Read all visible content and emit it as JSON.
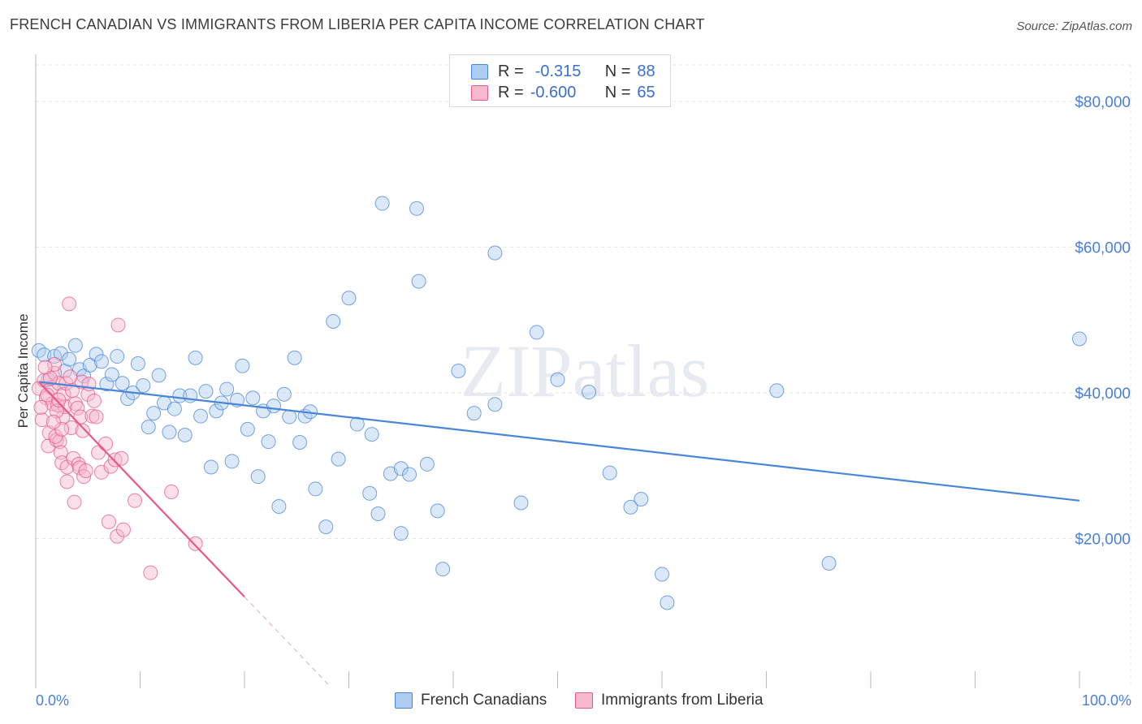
{
  "title": "FRENCH CANADIAN VS IMMIGRANTS FROM LIBERIA PER CAPITA INCOME CORRELATION CHART",
  "source": "Source: ZipAtlas.com",
  "watermark": "ZIPatlas",
  "colors": {
    "blue": "#4a86d8",
    "blue_fill": "#aecbf0",
    "pink": "#e8588a",
    "pink_fill": "#f7b9cd",
    "grid": "#e6e6e6",
    "axis_text": "#4a7fd6"
  },
  "legend": {
    "rows": [
      {
        "r_label": "R =",
        "r_value": "-0.315",
        "n_label": "N =",
        "n_value": "88"
      },
      {
        "r_label": "R =",
        "r_value": "-0.600",
        "n_label": "N =",
        "n_value": "65"
      }
    ]
  },
  "bottom_legend": [
    "French Canadians",
    "Immigrants from Liberia"
  ],
  "chart_data": {
    "type": "scatter",
    "title": "FRENCH CANADIAN VS IMMIGRANTS FROM LIBERIA PER CAPITA INCOME CORRELATION CHART",
    "xlabel": "",
    "ylabel": "Per Capita Income",
    "xlim": [
      0,
      100
    ],
    "ylim": [
      0,
      85000
    ],
    "x_tick_labels": [
      "0.0%",
      "100.0%"
    ],
    "y_ticks": [
      20000,
      40000,
      60000,
      80000
    ],
    "y_tick_labels": [
      "$20,000",
      "$40,000",
      "$60,000",
      "$80,000"
    ],
    "series": [
      {
        "name": "French Canadians",
        "color": "#4a86d8",
        "trend": {
          "x": [
            0.3,
            100
          ],
          "y": [
            41500,
            25200
          ]
        },
        "points": [
          [
            0.3,
            45800
          ],
          [
            0.8,
            45200
          ],
          [
            1.2,
            41800
          ],
          [
            1.8,
            45000
          ],
          [
            2.4,
            45400
          ],
          [
            2.8,
            43000
          ],
          [
            3.2,
            44600
          ],
          [
            3.8,
            46500
          ],
          [
            4.2,
            43200
          ],
          [
            4.6,
            42300
          ],
          [
            5.2,
            43800
          ],
          [
            5.8,
            45300
          ],
          [
            6.3,
            44300
          ],
          [
            6.8,
            41200
          ],
          [
            7.3,
            42500
          ],
          [
            7.8,
            45000
          ],
          [
            8.3,
            41300
          ],
          [
            8.8,
            39200
          ],
          [
            9.3,
            40000
          ],
          [
            9.8,
            44000
          ],
          [
            10.3,
            41000
          ],
          [
            10.8,
            35300
          ],
          [
            11.3,
            37200
          ],
          [
            11.8,
            42400
          ],
          [
            12.3,
            38600
          ],
          [
            12.8,
            34600
          ],
          [
            13.3,
            37800
          ],
          [
            13.8,
            39600
          ],
          [
            14.3,
            34200
          ],
          [
            14.8,
            39600
          ],
          [
            15.3,
            44800
          ],
          [
            15.8,
            36800
          ],
          [
            16.3,
            40200
          ],
          [
            16.8,
            29800
          ],
          [
            17.3,
            37500
          ],
          [
            17.8,
            38600
          ],
          [
            18.3,
            40500
          ],
          [
            18.8,
            30600
          ],
          [
            19.3,
            39000
          ],
          [
            19.8,
            43700
          ],
          [
            20.3,
            35000
          ],
          [
            20.8,
            39300
          ],
          [
            21.3,
            28500
          ],
          [
            21.8,
            37500
          ],
          [
            22.3,
            33300
          ],
          [
            22.8,
            38200
          ],
          [
            23.3,
            24400
          ],
          [
            23.8,
            39800
          ],
          [
            24.3,
            36700
          ],
          [
            24.8,
            44800
          ],
          [
            25.3,
            33200
          ],
          [
            25.8,
            36800
          ],
          [
            26.3,
            37400
          ],
          [
            26.8,
            26800
          ],
          [
            27.8,
            21600
          ],
          [
            28.5,
            49800
          ],
          [
            29.0,
            30900
          ],
          [
            30.0,
            53000
          ],
          [
            30.8,
            35700
          ],
          [
            32.0,
            26200
          ],
          [
            32.2,
            34300
          ],
          [
            32.8,
            23400
          ],
          [
            33.2,
            66000
          ],
          [
            34.0,
            28900
          ],
          [
            35.0,
            29600
          ],
          [
            35.0,
            20700
          ],
          [
            35.8,
            28800
          ],
          [
            36.5,
            65300
          ],
          [
            36.7,
            55300
          ],
          [
            37.5,
            30200
          ],
          [
            38.5,
            23800
          ],
          [
            39.0,
            15800
          ],
          [
            40.5,
            43000
          ],
          [
            42.0,
            37200
          ],
          [
            44.0,
            59200
          ],
          [
            44.0,
            38400
          ],
          [
            46.5,
            24900
          ],
          [
            48.0,
            48300
          ],
          [
            50.0,
            41800
          ],
          [
            53.0,
            40100
          ],
          [
            55.0,
            29000
          ],
          [
            57.0,
            24300
          ],
          [
            58.0,
            25400
          ],
          [
            60.0,
            15100
          ],
          [
            60.5,
            11200
          ],
          [
            71.0,
            40300
          ],
          [
            76.0,
            16600
          ],
          [
            100,
            47400
          ]
        ]
      },
      {
        "name": "Immigrants from Liberia",
        "color": "#e8588a",
        "trend": {
          "x": [
            0.3,
            20.0
          ],
          "y": [
            41500,
            12000
          ]
        },
        "trend_dashed": {
          "x": [
            20.0,
            28.0
          ],
          "y": [
            12000,
            0
          ]
        },
        "points": [
          [
            0.3,
            40600
          ],
          [
            0.6,
            36300
          ],
          [
            0.8,
            41700
          ],
          [
            1.0,
            39300
          ],
          [
            1.2,
            32700
          ],
          [
            1.3,
            34500
          ],
          [
            1.5,
            40700
          ],
          [
            1.6,
            38500
          ],
          [
            1.8,
            42700
          ],
          [
            1.8,
            43900
          ],
          [
            2.0,
            33500
          ],
          [
            2.1,
            38300
          ],
          [
            2.2,
            41300
          ],
          [
            2.3,
            33300
          ],
          [
            2.4,
            31800
          ],
          [
            2.5,
            30400
          ],
          [
            2.6,
            36600
          ],
          [
            2.7,
            39800
          ],
          [
            2.8,
            38100
          ],
          [
            2.9,
            41300
          ],
          [
            3.0,
            29800
          ],
          [
            3.0,
            27800
          ],
          [
            3.2,
            52200
          ],
          [
            3.4,
            35200
          ],
          [
            3.5,
            40300
          ],
          [
            3.6,
            31000
          ],
          [
            3.7,
            25000
          ],
          [
            3.8,
            38500
          ],
          [
            4.0,
            37900
          ],
          [
            4.1,
            30200
          ],
          [
            4.2,
            29700
          ],
          [
            4.3,
            36700
          ],
          [
            4.4,
            41500
          ],
          [
            4.6,
            28500
          ],
          [
            4.8,
            29300
          ],
          [
            5.0,
            39800
          ],
          [
            5.1,
            41200
          ],
          [
            5.4,
            36800
          ],
          [
            5.6,
            38900
          ],
          [
            5.8,
            36700
          ],
          [
            6.0,
            31800
          ],
          [
            6.3,
            29100
          ],
          [
            6.7,
            33000
          ],
          [
            7.0,
            22300
          ],
          [
            7.2,
            29900
          ],
          [
            7.6,
            30800
          ],
          [
            7.8,
            20300
          ],
          [
            7.9,
            49300
          ],
          [
            8.2,
            31000
          ],
          [
            8.4,
            21200
          ],
          [
            9.5,
            25200
          ],
          [
            11.0,
            15300
          ],
          [
            13.0,
            26400
          ],
          [
            15.3,
            19300
          ],
          [
            0.5,
            38000
          ],
          [
            1.1,
            39700
          ],
          [
            1.4,
            42000
          ],
          [
            1.9,
            34000
          ],
          [
            2.0,
            37500
          ],
          [
            2.5,
            35000
          ],
          [
            3.3,
            42200
          ],
          [
            0.9,
            43500
          ],
          [
            1.7,
            36000
          ],
          [
            2.2,
            39000
          ],
          [
            4.5,
            34800
          ]
        ]
      }
    ]
  }
}
